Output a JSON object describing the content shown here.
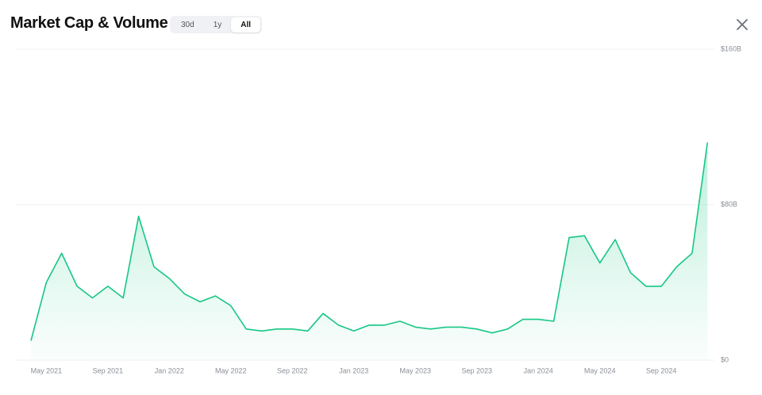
{
  "chart_data": {
    "type": "line",
    "title": "Market Cap & Volume",
    "x": [
      "2021-04",
      "2021-05",
      "2021-06",
      "2021-07",
      "2021-08",
      "2021-09",
      "2021-10",
      "2021-11",
      "2021-12",
      "2022-01",
      "2022-02",
      "2022-03",
      "2022-04",
      "2022-05",
      "2022-06",
      "2022-07",
      "2022-08",
      "2022-09",
      "2022-10",
      "2022-11",
      "2022-12",
      "2023-01",
      "2023-02",
      "2023-03",
      "2023-04",
      "2023-05",
      "2023-06",
      "2023-07",
      "2023-08",
      "2023-09",
      "2023-10",
      "2023-11",
      "2023-12",
      "2024-01",
      "2024-02",
      "2024-03",
      "2024-04",
      "2024-05",
      "2024-06",
      "2024-07",
      "2024-08",
      "2024-09",
      "2024-10",
      "2024-11",
      "2024-12"
    ],
    "series": [
      {
        "name": "Market Cap",
        "color": "#16c784",
        "values": [
          10,
          40,
          55,
          38,
          32,
          38,
          32,
          74,
          48,
          42,
          34,
          30,
          33,
          28,
          16,
          15,
          16,
          16,
          15,
          24,
          18,
          15,
          18,
          18,
          20,
          17,
          16,
          17,
          17,
          16,
          14,
          16,
          21,
          21,
          20,
          63,
          64,
          50,
          62,
          45,
          38,
          38,
          48,
          55,
          112
        ]
      }
    ],
    "xticks": [
      {
        "value": "2021-05",
        "label": "May 2021"
      },
      {
        "value": "2021-09",
        "label": "Sep 2021"
      },
      {
        "value": "2022-01",
        "label": "Jan 2022"
      },
      {
        "value": "2022-05",
        "label": "May 2022"
      },
      {
        "value": "2022-09",
        "label": "Sep 2022"
      },
      {
        "value": "2023-01",
        "label": "Jan 2023"
      },
      {
        "value": "2023-05",
        "label": "May 2023"
      },
      {
        "value": "2023-09",
        "label": "Sep 2023"
      },
      {
        "value": "2024-01",
        "label": "Jan 2024"
      },
      {
        "value": "2024-05",
        "label": "May 2024"
      },
      {
        "value": "2024-09",
        "label": "Sep 2024"
      }
    ],
    "ylim": [
      0,
      160
    ],
    "yticks": [
      {
        "value": 0,
        "label": "$0"
      },
      {
        "value": 80,
        "label": "$80B"
      },
      {
        "value": 160,
        "label": "$160B"
      }
    ],
    "grid": true
  },
  "ui": {
    "range_buttons": [
      "30d",
      "1y",
      "All"
    ],
    "active_range": 2
  }
}
